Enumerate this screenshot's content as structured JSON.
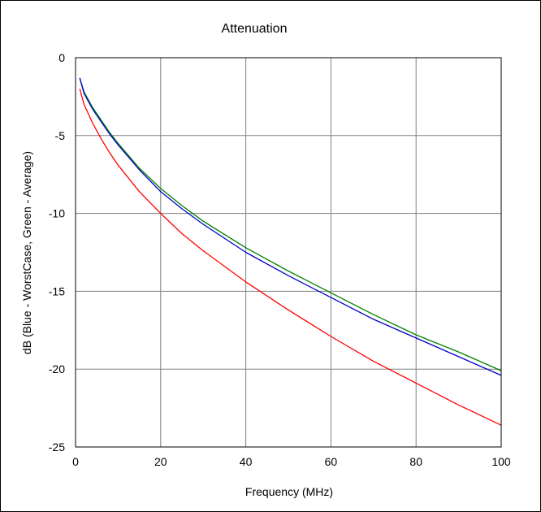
{
  "chart_data": {
    "type": "line",
    "title": "Attenuation",
    "xlabel": "Frequency (MHz)",
    "ylabel": "dB (Blue - WorstCase, Green - Average)",
    "xlim": [
      0,
      100
    ],
    "ylim": [
      -25,
      0
    ],
    "xticks": [
      0,
      20,
      40,
      60,
      80,
      100
    ],
    "yticks": [
      0,
      -5,
      -10,
      -15,
      -20,
      -25
    ],
    "grid": true,
    "series": [
      {
        "color": "#008000",
        "x": [
          1,
          2,
          4,
          6,
          8,
          10,
          15,
          20,
          25,
          30,
          40,
          50,
          60,
          70,
          80,
          90,
          100
        ],
        "y": [
          -1.3,
          -2.2,
          -3.2,
          -4.0,
          -4.8,
          -5.5,
          -7.1,
          -8.4,
          -9.5,
          -10.5,
          -12.2,
          -13.7,
          -15.1,
          -16.5,
          -17.8,
          -18.9,
          -20.1
        ]
      },
      {
        "color": "#0000cc",
        "x": [
          1,
          2,
          4,
          6,
          8,
          10,
          15,
          20,
          25,
          30,
          40,
          50,
          60,
          70,
          80,
          90,
          100
        ],
        "y": [
          -1.3,
          -2.3,
          -3.3,
          -4.1,
          -4.9,
          -5.6,
          -7.2,
          -8.6,
          -9.7,
          -10.7,
          -12.5,
          -14.0,
          -15.4,
          -16.8,
          -18.0,
          -19.2,
          -20.4
        ]
      },
      {
        "color": "#ff0000",
        "x": [
          1,
          2,
          4,
          6,
          8,
          10,
          15,
          20,
          25,
          30,
          40,
          50,
          60,
          70,
          80,
          90,
          100
        ],
        "y": [
          -2.0,
          -3.0,
          -4.2,
          -5.2,
          -6.1,
          -6.9,
          -8.6,
          -10.0,
          -11.3,
          -12.4,
          -14.4,
          -16.2,
          -17.9,
          -19.5,
          -20.9,
          -22.3,
          -23.6
        ]
      }
    ]
  }
}
